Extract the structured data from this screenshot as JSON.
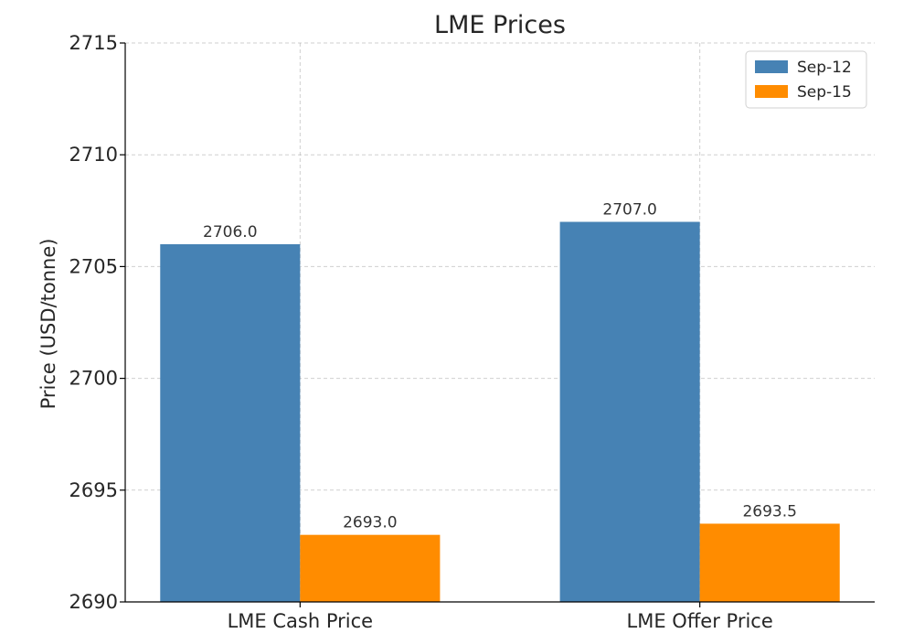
{
  "chart_data": {
    "type": "bar",
    "title": "LME Prices",
    "xlabel": "",
    "ylabel": "Price (USD/tonne)",
    "categories": [
      "LME Cash Price",
      "LME Offer Price"
    ],
    "series": [
      {
        "name": "Sep-12",
        "color": "#4682b4",
        "values": [
          2706.0,
          2707.0
        ],
        "value_labels": [
          "2706.0",
          "2707.0"
        ]
      },
      {
        "name": "Sep-15",
        "color": "#ff8c00",
        "values": [
          2693.0,
          2693.5
        ],
        "value_labels": [
          "2693.0",
          "2693.5"
        ]
      }
    ],
    "ylim": [
      2690,
      2715
    ],
    "yticks": [
      2690,
      2695,
      2700,
      2705,
      2710,
      2715
    ],
    "ytick_labels": [
      "2690",
      "2695",
      "2700",
      "2705",
      "2710",
      "2715"
    ],
    "grid": true,
    "legend": "top-right"
  }
}
